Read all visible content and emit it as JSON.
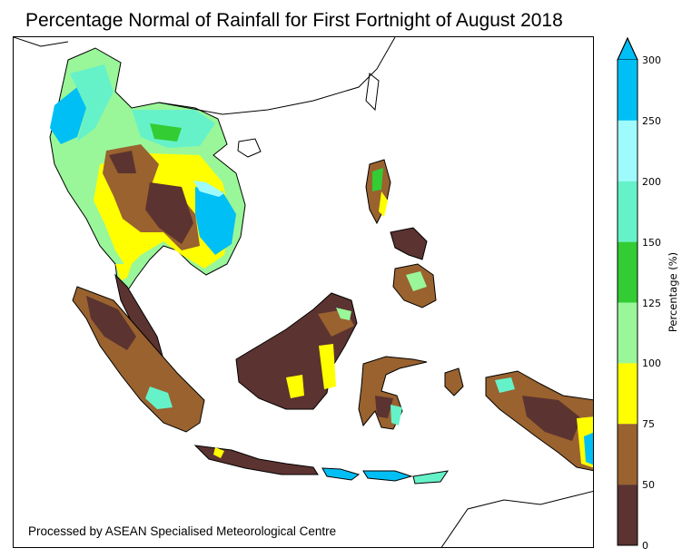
{
  "title": "Percentage Normal of Rainfall for First Fortnight of August 2018",
  "credit": "Processed by ASEAN Specialised Meteorological Centre",
  "colorbar": {
    "label": "Percentage (%)",
    "ticks": [
      "300",
      "250",
      "200",
      "150",
      "125",
      "100",
      "75",
      "50",
      "0"
    ],
    "bins": [
      {
        "from": 0,
        "to": 50,
        "color": "#5b3330"
      },
      {
        "from": 50,
        "to": 75,
        "color": "#99622f"
      },
      {
        "from": 75,
        "to": 100,
        "color": "#ffff00"
      },
      {
        "from": 100,
        "to": 125,
        "color": "#99f799"
      },
      {
        "from": 125,
        "to": 150,
        "color": "#33cc33"
      },
      {
        "from": 150,
        "to": 200,
        "color": "#66f2c9"
      },
      {
        "from": 200,
        "to": 250,
        "color": "#9ffbfb"
      },
      {
        "from": 250,
        "to": 300,
        "color": "#00bff5"
      }
    ],
    "extend": "max"
  }
}
